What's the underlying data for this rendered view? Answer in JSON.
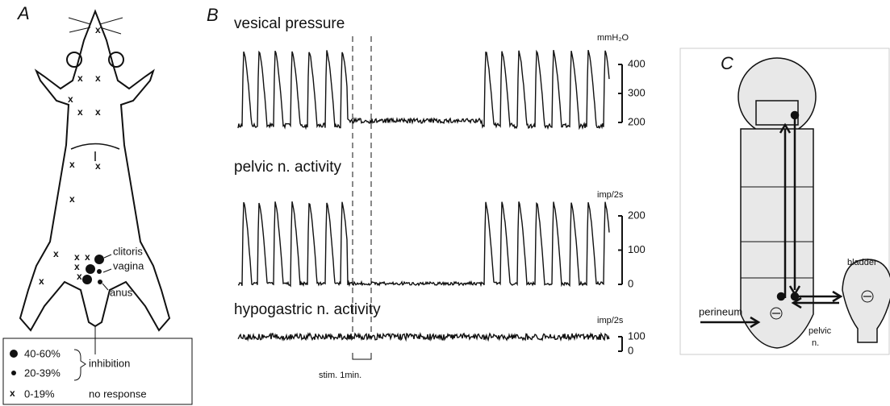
{
  "panel_a": {
    "label": "A",
    "annotations": [
      "clitoris",
      "vagina",
      "anus"
    ],
    "legend": [
      {
        "range": "40-60%"
      },
      {
        "range": "20-39%"
      },
      {
        "range": "0-19%"
      }
    ],
    "inhibition": "inhibition",
    "no_response": "no response"
  },
  "panel_b": {
    "label": "B",
    "traces": [
      {
        "title": "vesical pressure",
        "unit": "mmH₂O",
        "ticks": [
          "400",
          "300",
          "200"
        ]
      },
      {
        "title": "pelvic n. activity",
        "unit": "imp/2s",
        "ticks": [
          "200",
          "100",
          "0"
        ]
      },
      {
        "title": "hypogastric n. activity",
        "unit": "imp/2s",
        "ticks": [
          "100",
          "0"
        ]
      }
    ],
    "stim": "stim. 1min."
  },
  "panel_c": {
    "label": "C",
    "perineum": "perineum",
    "bladder": "bladder",
    "pelvic": "pelvic",
    "n": "n."
  }
}
